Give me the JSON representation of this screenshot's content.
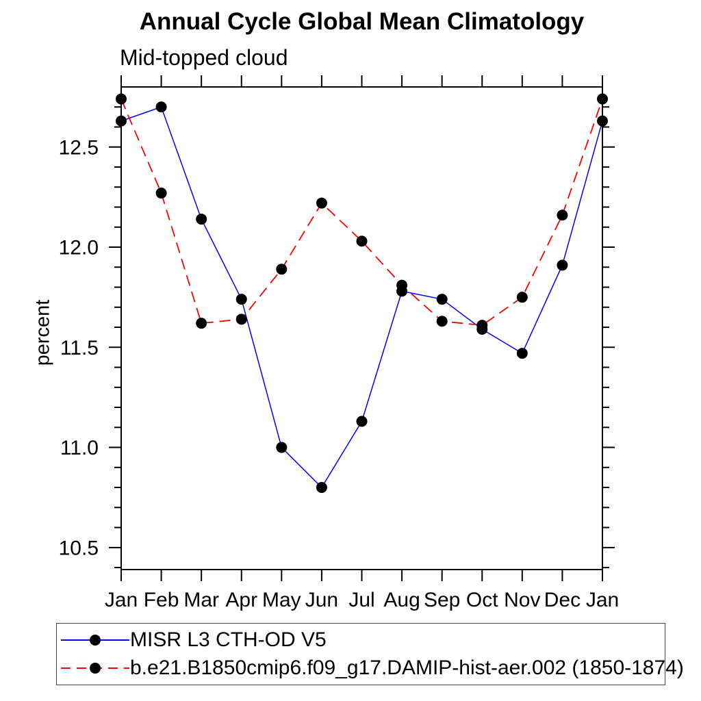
{
  "chart_data": {
    "type": "line",
    "title": "Annual Cycle Global Mean Climatology",
    "subtitle": "Mid-topped cloud",
    "ylabel": "percent",
    "xlabel": "",
    "categories": [
      "Jan",
      "Feb",
      "Mar",
      "Apr",
      "May",
      "Jun",
      "Jul",
      "Aug",
      "Sep",
      "Oct",
      "Nov",
      "Dec",
      "Jan"
    ],
    "series": [
      {
        "name": "MISR L3 CTH-OD V5",
        "color": "#0000ff",
        "line_style": "solid",
        "marker": "filled-circle",
        "marker_color": "#000000",
        "values": [
          12.63,
          12.7,
          12.14,
          11.74,
          11.0,
          10.8,
          11.13,
          11.78,
          11.74,
          11.59,
          11.47,
          11.91,
          12.63
        ]
      },
      {
        "name": "b.e21.B1850cmip6.f09_g17.DAMIP-hist-aer.002 (1850-1874)",
        "color": "#ff0000",
        "line_style": "dashed",
        "marker": "filled-circle",
        "marker_color": "#000000",
        "values": [
          12.74,
          12.27,
          11.62,
          11.64,
          11.89,
          12.22,
          12.03,
          11.81,
          11.63,
          11.61,
          11.75,
          12.16,
          12.74
        ]
      }
    ],
    "ylim": [
      10.39,
      12.8
    ],
    "yticks_major": [
      10.5,
      11.0,
      11.5,
      12.0,
      12.5
    ],
    "ytick_minor_step": 0.1,
    "grid": "off",
    "axis_color": "#000000",
    "legend_position": "bottom-left-box"
  }
}
